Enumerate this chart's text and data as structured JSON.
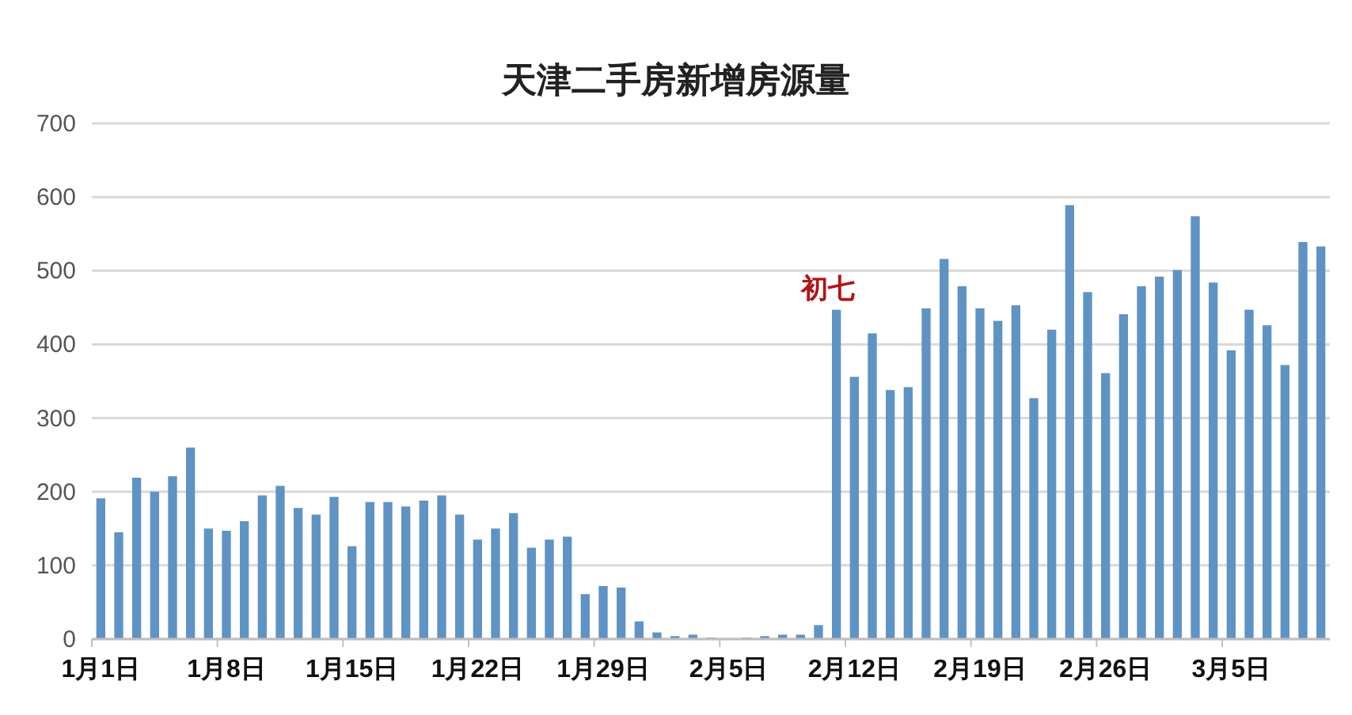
{
  "chart_data": {
    "type": "bar",
    "title": "天津二手房新增房源量",
    "categories": [
      "1月1日",
      null,
      null,
      null,
      null,
      null,
      null,
      "1月8日",
      null,
      null,
      null,
      null,
      null,
      null,
      "1月15日",
      null,
      null,
      null,
      null,
      null,
      null,
      "1月22日",
      null,
      null,
      null,
      null,
      null,
      null,
      "1月29日",
      null,
      null,
      null,
      null,
      null,
      null,
      "2月5日",
      null,
      null,
      null,
      null,
      null,
      null,
      "2月12日",
      null,
      null,
      null,
      null,
      null,
      null,
      "2月19日",
      null,
      null,
      null,
      null,
      null,
      null,
      "2月26日",
      null,
      null,
      null,
      null,
      null,
      null,
      "3月5日",
      null,
      null,
      null,
      null,
      null
    ],
    "values": [
      191,
      145,
      219,
      200,
      221,
      260,
      150,
      147,
      160,
      195,
      208,
      178,
      169,
      193,
      126,
      186,
      186,
      180,
      188,
      195,
      169,
      135,
      150,
      171,
      124,
      135,
      139,
      61,
      72,
      70,
      24,
      9,
      4,
      6,
      2,
      1,
      2,
      4,
      6,
      6,
      19,
      447,
      356,
      415,
      338,
      342,
      449,
      516,
      479,
      449,
      432,
      453,
      327,
      420,
      589,
      471,
      361,
      441,
      479,
      492,
      501,
      574,
      484,
      392,
      447,
      426,
      372,
      539,
      533
    ],
    "color": "#5f93c4",
    "ylim": [
      0,
      700
    ],
    "yticks": [
      0,
      100,
      200,
      300,
      400,
      500,
      600,
      700
    ],
    "grid": "y",
    "annotations": [
      "初七"
    ]
  }
}
